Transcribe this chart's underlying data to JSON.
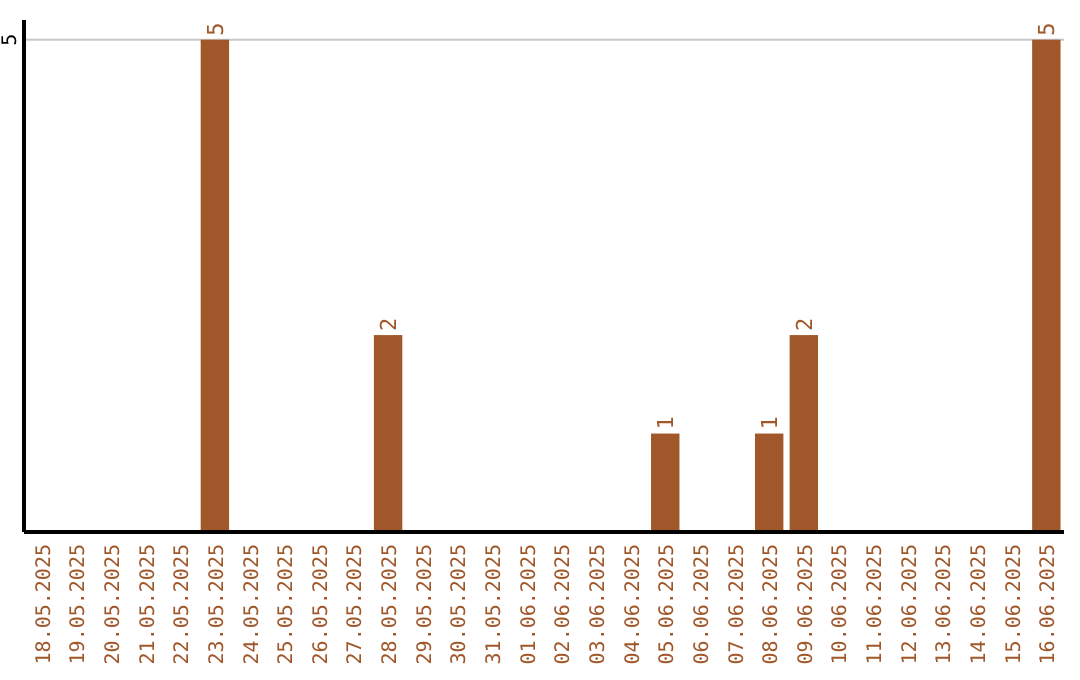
{
  "chart_data": {
    "type": "bar",
    "categories": [
      "18.05.2025",
      "19.05.2025",
      "20.05.2025",
      "21.05.2025",
      "22.05.2025",
      "23.05.2025",
      "24.05.2025",
      "25.05.2025",
      "26.05.2025",
      "27.05.2025",
      "28.05.2025",
      "29.05.2025",
      "30.05.2025",
      "31.05.2025",
      "01.06.2025",
      "02.06.2025",
      "03.06.2025",
      "04.06.2025",
      "05.06.2025",
      "06.06.2025",
      "07.06.2025",
      "08.06.2025",
      "09.06.2025",
      "10.06.2025",
      "11.06.2025",
      "12.06.2025",
      "13.06.2025",
      "14.06.2025",
      "15.06.2025",
      "16.06.2025"
    ],
    "values": [
      0,
      0,
      0,
      0,
      0,
      5,
      0,
      0,
      0,
      0,
      2,
      0,
      0,
      0,
      0,
      0,
      0,
      0,
      1,
      0,
      0,
      1,
      2,
      0,
      0,
      0,
      0,
      0,
      0,
      5
    ],
    "value_labels": [
      null,
      null,
      null,
      null,
      null,
      "5",
      null,
      null,
      null,
      null,
      "2",
      null,
      null,
      null,
      null,
      null,
      null,
      null,
      "1",
      null,
      null,
      "1",
      "2",
      null,
      null,
      null,
      null,
      null,
      null,
      "5"
    ],
    "color": "#a0572a",
    "ylim": [
      0,
      5.2
    ],
    "yticks": [
      5
    ],
    "grid": "y"
  }
}
